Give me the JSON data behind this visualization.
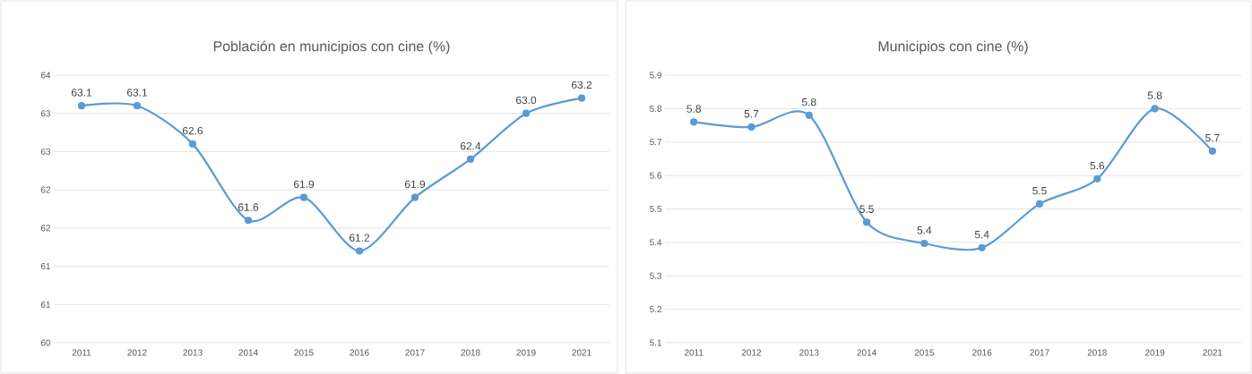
{
  "chart_data": [
    {
      "type": "line",
      "title": "Población en municipios con cine (%)",
      "categories": [
        "2011",
        "2012",
        "2013",
        "2014",
        "2015",
        "2016",
        "2017",
        "2018",
        "2019",
        "2021"
      ],
      "values": [
        63.1,
        63.1,
        62.6,
        61.6,
        61.9,
        61.2,
        61.9,
        62.4,
        63.0,
        63.2
      ],
      "value_labels": [
        "63.1",
        "63.1",
        "62.6",
        "61.6",
        "61.9",
        "61.2",
        "61.9",
        "62.4",
        "63.0",
        "63.2"
      ],
      "color": "#5b9bd5",
      "ylim": [
        60,
        63.5
      ],
      "yticks": [
        60,
        {
          "value": 60.5,
          "label": "61"
        },
        61,
        {
          "value": 61.5,
          "label": "62"
        },
        62,
        {
          "value": 62.5,
          "label": "63"
        },
        63,
        {
          "value": 63.5,
          "label": "64"
        }
      ],
      "grid": "y",
      "marker": "circle",
      "line_style": "solid"
    },
    {
      "type": "line",
      "title": "Municipios con cine (%)",
      "categories": [
        "2011",
        "2012",
        "2013",
        "2014",
        "2015",
        "2016",
        "2017",
        "2018",
        "2019",
        "2021"
      ],
      "values": [
        5.76,
        5.745,
        5.78,
        5.46,
        5.397,
        5.384,
        5.515,
        5.59,
        5.8,
        5.673
      ],
      "value_labels": [
        "5.8",
        "5.7",
        "5.8",
        "5.5",
        "5.4",
        "5.4",
        "5.5",
        "5.6",
        "5.8",
        "5.7"
      ],
      "color": "#5b9bd5",
      "ylim": [
        5.1,
        5.9
      ],
      "yticks": [
        5.1,
        5.2,
        5.3,
        5.4,
        5.5,
        5.6,
        5.7,
        5.8,
        5.9
      ],
      "grid": "y",
      "marker": "circle",
      "line_style": "solid"
    }
  ]
}
